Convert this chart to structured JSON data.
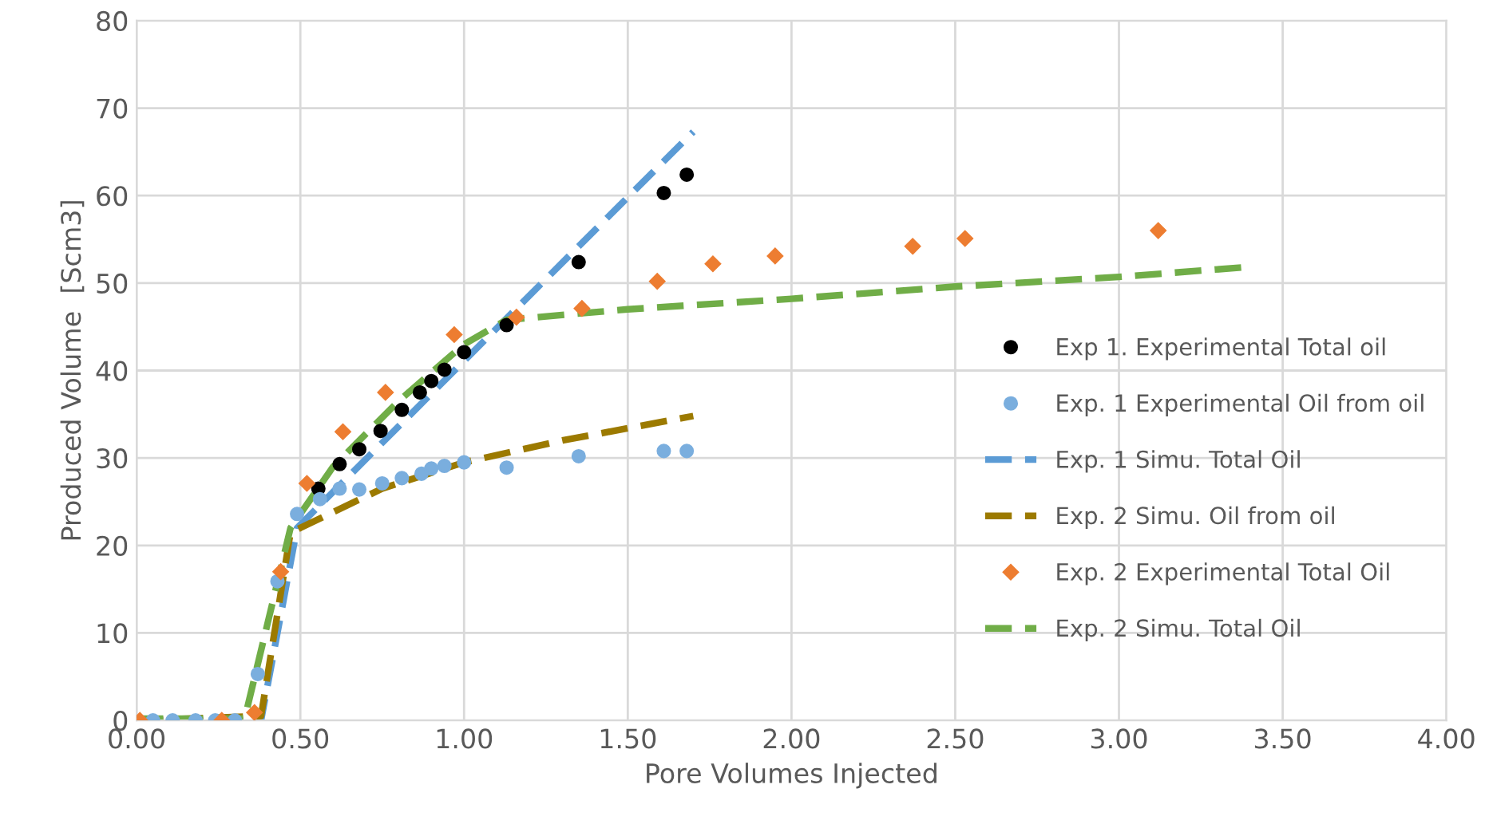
{
  "chart_data": {
    "type": "scatter",
    "xlabel": "Pore Volumes Injected",
    "ylabel": "Produced Volume  [Scm3]",
    "xlim": [
      0,
      4
    ],
    "xticks": [
      {
        "value": 0,
        "label": "0.00"
      },
      {
        "value": 0.5,
        "label": "0.50"
      },
      {
        "value": 1,
        "label": "1.00"
      },
      {
        "value": 1.5,
        "label": "1.50"
      },
      {
        "value": 2,
        "label": "2.00"
      },
      {
        "value": 2.5,
        "label": "2.50"
      },
      {
        "value": 3,
        "label": "3.00"
      },
      {
        "value": 3.5,
        "label": "3.50"
      },
      {
        "value": 4,
        "label": "4.00"
      }
    ],
    "ylim": [
      0,
      80
    ],
    "yticks": [
      0,
      10,
      20,
      30,
      40,
      50,
      60,
      70,
      80
    ],
    "grid": true,
    "legend": "right",
    "series": [
      {
        "name": "Exp 1. Experimental Total oil",
        "marker": "circle",
        "color": "#000000",
        "x": [
          0.555,
          0.62,
          0.68,
          0.745,
          0.81,
          0.865,
          0.9,
          0.94,
          1.0,
          1.13,
          1.35,
          1.61,
          1.68
        ],
        "values": [
          26.5,
          29.3,
          31,
          33.1,
          35.5,
          37.5,
          38.8,
          40.1,
          42.1,
          45.2,
          52.4,
          60.3,
          62.4
        ]
      },
      {
        "name": "Exp. 1 Experimental Oil from oil",
        "marker": "circle",
        "color": "#7aaede",
        "x": [
          0.05,
          0.11,
          0.18,
          0.24,
          0.3,
          0.37,
          0.43,
          0.49,
          0.56,
          0.62,
          0.68,
          0.75,
          0.81,
          0.87,
          0.9,
          0.94,
          1.0,
          1.13,
          1.35,
          1.61,
          1.68
        ],
        "values": [
          0,
          0,
          0,
          0,
          0,
          5.3,
          15.9,
          23.6,
          25.3,
          26.5,
          26.4,
          27.1,
          27.7,
          28.2,
          28.8,
          29.1,
          29.5,
          28.9,
          30.2,
          30.8,
          30.8
        ]
      },
      {
        "name": "Exp. 1 Simu. Total Oil",
        "type": "line",
        "line_style": "dashed",
        "color": "#5b9bd5",
        "x": [
          0,
          0.38,
          0.49,
          1.0,
          1.7
        ],
        "values": [
          0,
          0,
          22,
          41.1,
          67.3
        ]
      },
      {
        "name": "Exp. 2 Simu. Oil from oil",
        "type": "line",
        "line_style": "dashed",
        "color": "#9c7a00",
        "x": [
          0,
          0.38,
          0.47,
          0.5,
          0.75,
          1.0,
          1.3,
          1.7
        ],
        "values": [
          0,
          0.5,
          21.5,
          22,
          26.5,
          29.5,
          32,
          34.8
        ]
      },
      {
        "name": "Exp. 2 Experimental Total Oil",
        "marker": "diamond",
        "color": "#ed7d31",
        "x": [
          0.01,
          0.26,
          0.36,
          0.44,
          0.52,
          0.63,
          0.76,
          0.97,
          1.16,
          1.36,
          1.59,
          1.76,
          1.95,
          2.37,
          2.53,
          3.12
        ],
        "values": [
          0,
          0,
          0.9,
          17,
          27.1,
          33,
          37.5,
          44.1,
          46.1,
          47.1,
          50.2,
          52.2,
          53.1,
          54.2,
          55.1,
          56
        ]
      },
      {
        "name": "Exp. 2 Simu. Total Oil",
        "type": "line",
        "line_style": "dashed",
        "color": "#70ad47",
        "x": [
          0,
          0.33,
          0.47,
          0.6,
          0.8,
          1.0,
          1.13,
          1.5,
          2.0,
          2.5,
          3.0,
          3.38
        ],
        "values": [
          0.2,
          0.2,
          22,
          29,
          36.5,
          43,
          45.8,
          47,
          48.2,
          49.6,
          50.7,
          51.8
        ]
      }
    ]
  }
}
